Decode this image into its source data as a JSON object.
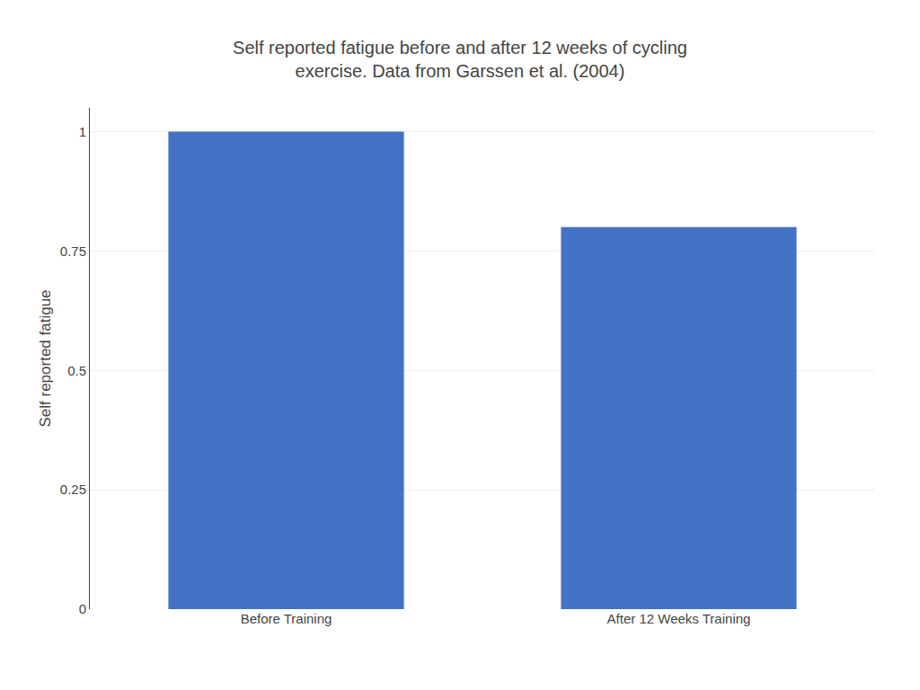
{
  "chart_data": {
    "type": "bar",
    "title": "Self reported fatigue before and after 12 weeks of cycling\nexercise. Data from Garssen et al. (2004)",
    "ylabel": "Self reported fatigue",
    "categories": [
      "Before Training",
      "After 12 Weeks Training"
    ],
    "values": [
      1.0,
      0.8
    ],
    "color": "#4472C4",
    "ylim": [
      0,
      1.05
    ],
    "yticks": [
      0,
      0.25,
      0.5,
      0.75,
      1
    ],
    "grid": true
  }
}
